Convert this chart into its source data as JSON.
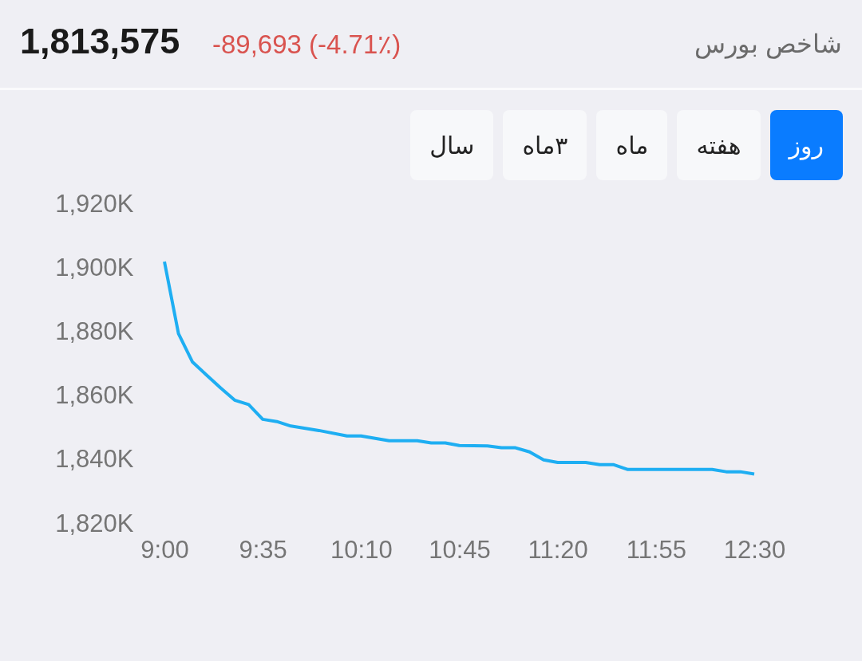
{
  "chart_data": {
    "type": "line",
    "title": "شاخص بورس",
    "subtitle": "1,813,575",
    "annotations": [
      "-89,693 (-4.71٪)",
      "روز",
      "هفته",
      "ماه",
      "۳ماه",
      "سال"
    ],
    "x": [
      9,
      9.083333,
      9.166667,
      9.333333,
      9.416667,
      9.5,
      9.583333,
      9.666667,
      9.75,
      9.916667,
      10.083333,
      10.166667,
      10.333333,
      10.5,
      10.583333,
      10.666667,
      10.75,
      10.916667,
      11,
      11.083333,
      11.166667,
      11.25,
      11.333333,
      11.5,
      11.583333,
      11.666667,
      11.75,
      12.25,
      12.333333,
      12.416667,
      12.5
    ],
    "series": [
      {
        "color": "#1eaef2",
        "values": [
          1902,
          1879.5,
          1870.6,
          1862.5,
          1858.7,
          1857.3,
          1852.7,
          1852,
          1850.6,
          1849.2,
          1847.5,
          1847.5,
          1846,
          1846,
          1845.3,
          1845.3,
          1844.5,
          1844.4,
          1843.8,
          1843.8,
          1842.5,
          1840,
          1839.2,
          1839.2,
          1838.5,
          1838.5,
          1837,
          1837,
          1836.3,
          1836.3,
          1835.6
        ]
      }
    ],
    "xlim": [
      9,
      12.5
    ],
    "xticks": [
      {
        "value": 9,
        "label": "9:00"
      },
      {
        "value": 9.583333,
        "label": "9:35"
      },
      {
        "value": 10.166667,
        "label": "10:10"
      },
      {
        "value": 10.75,
        "label": "10:45"
      },
      {
        "value": 11.333333,
        "label": "11:20"
      },
      {
        "value": 11.916667,
        "label": "11:55"
      },
      {
        "value": 12.5,
        "label": "12:30"
      }
    ],
    "ylim": [
      1820,
      1920
    ],
    "yticks": [
      {
        "value": 1820,
        "label": "1,820K"
      },
      {
        "value": 1840,
        "label": "1,840K"
      },
      {
        "value": 1860,
        "label": "1,860K"
      },
      {
        "value": 1880,
        "label": "1,880K"
      },
      {
        "value": 1900,
        "label": "1,900K"
      },
      {
        "value": 1920,
        "label": "1,920K"
      }
    ],
    "grid": false,
    "marker": "none",
    "line_style": "solid"
  }
}
